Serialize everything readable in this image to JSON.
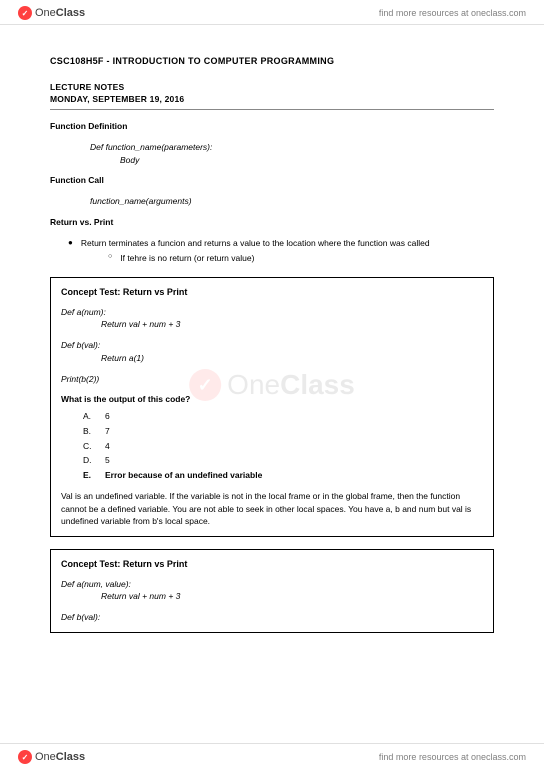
{
  "brand": {
    "icon_glyph": "✓",
    "name_one": "One",
    "name_class": "Class",
    "tagline": "find more resources at oneclass.com"
  },
  "course": {
    "code_title": "CSC108H5F - INTRODUCTION TO COMPUTER PROGRAMMING",
    "lecture_label": "LECTURE NOTES",
    "date": "MONDAY, SEPTEMBER 19, 2016"
  },
  "sections": {
    "func_def": {
      "title": "Function Definition",
      "line1": "Def function_name(parameters):",
      "line2": "Body"
    },
    "func_call": {
      "title": "Function Call",
      "line1": "function_name(arguments)"
    },
    "ret_print": {
      "title": "Return vs. Print",
      "bullet": "Return terminates a funcion and returns a value to the location where the function was called",
      "sub_bullet": "If tehre is no return (or return value)"
    }
  },
  "box1": {
    "title": "Concept Test: Return vs Print",
    "c1": "Def a(num):",
    "c2": "Return val + num + 3",
    "c3": "Def b(val):",
    "c4": "Return a(1)",
    "c5": "Print(b(2))",
    "question": "What is the output of this code?",
    "options": [
      {
        "letter": "A.",
        "text": "6",
        "bold": false
      },
      {
        "letter": "B.",
        "text": "7",
        "bold": false
      },
      {
        "letter": "C.",
        "text": "4",
        "bold": false
      },
      {
        "letter": "D.",
        "text": "5",
        "bold": false
      },
      {
        "letter": "E.",
        "text": "Error because of an undefined variable",
        "bold": true
      }
    ],
    "explain": "Val is an undefined variable. If the variable is not in the local frame or in the global frame, then the function cannot be a defined variable. You are not able to seek in other local spaces. You have a, b and num but val is undefined variable from b's local space."
  },
  "box2": {
    "title": "Concept Test: Return vs Print",
    "c1": "Def a(num, value):",
    "c2": "Return val + num + 3",
    "c3": "Def b(val):"
  },
  "colors": {
    "brand_red": "#ff4040",
    "text_gray": "#808080",
    "rule": "#888888"
  }
}
